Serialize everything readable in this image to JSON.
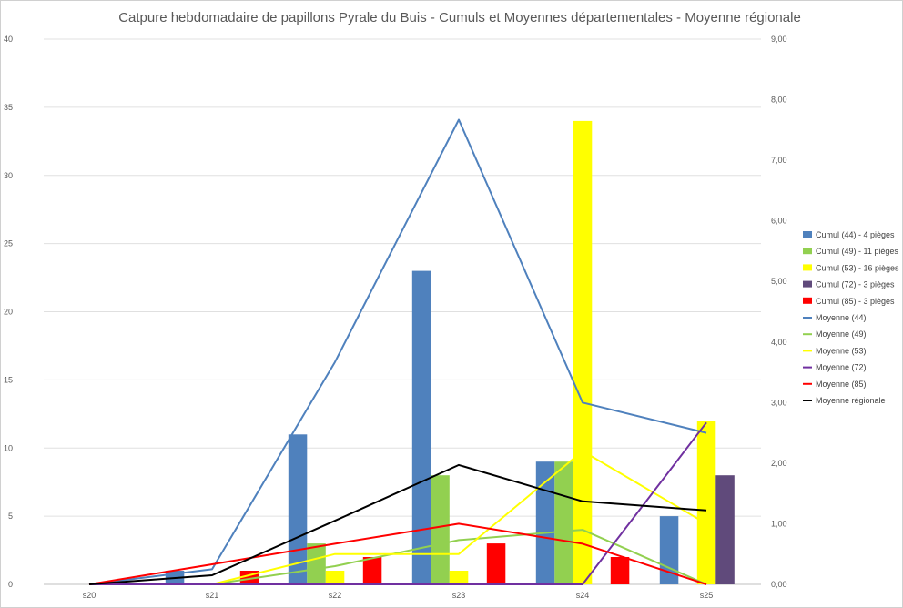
{
  "chart_data": {
    "type": "bar",
    "title": "Catpure hebdomadaire de papillons Pyrale du Buis - Cumuls et Moyennes départementales - Moyenne régionale",
    "categories": [
      "s20",
      "s21",
      "s22",
      "s23",
      "s24",
      "s25"
    ],
    "y_left": {
      "ylim": [
        0,
        40
      ],
      "ticks": [
        "0",
        "5",
        "10",
        "15",
        "20",
        "25",
        "30",
        "35",
        "40"
      ]
    },
    "y_right": {
      "ylim": [
        0,
        9
      ],
      "ticks": [
        "0,00",
        "1,00",
        "2,00",
        "3,00",
        "4,00",
        "5,00",
        "6,00",
        "7,00",
        "8,00",
        "9,00"
      ]
    },
    "grid": true,
    "legend_position": "right",
    "bar_series": [
      {
        "name": "Cumul (44) - 4 pièges",
        "color": "#4f81bd",
        "values": [
          0,
          1,
          11,
          23,
          9,
          5
        ]
      },
      {
        "name": "Cumul (49) - 11 pièges",
        "color": "#92d050",
        "values": [
          0,
          0,
          3,
          8,
          9,
          0
        ]
      },
      {
        "name": "Cumul (53) - 16 pièges",
        "color": "#ffff00",
        "values": [
          0,
          0,
          1,
          1,
          34,
          12
        ]
      },
      {
        "name": "Cumul (72) - 3 pièges",
        "color": "#604a7b",
        "values": [
          0,
          0,
          0,
          0,
          0,
          8
        ]
      },
      {
        "name": "Cumul (85) - 3 pièges",
        "color": "#ff0000",
        "values": [
          0,
          1,
          2,
          3,
          2,
          0
        ]
      }
    ],
    "line_series": [
      {
        "name": "Moyenne (44)",
        "color": "#4f81bd",
        "values": [
          0,
          0.25,
          3.67,
          7.67,
          3.0,
          2.5
        ]
      },
      {
        "name": "Moyenne (49)",
        "color": "#92d050",
        "values": [
          null,
          0,
          0.3,
          0.73,
          0.9,
          0
        ]
      },
      {
        "name": "Moyenne (53)",
        "color": "#ffff00",
        "values": [
          null,
          0,
          0.5,
          0.5,
          2.2,
          1.0
        ]
      },
      {
        "name": "Moyenne (72)",
        "color": "#7030a0",
        "values": [
          0,
          0,
          0,
          0,
          0,
          2.67
        ]
      },
      {
        "name": "Moyenne (85)",
        "color": "#ff0000",
        "values": [
          0,
          0.33,
          0.67,
          1.0,
          0.67,
          0
        ]
      },
      {
        "name": "Moyenne régionale",
        "color": "#000000",
        "values": [
          0,
          0.15,
          1.05,
          1.97,
          1.37,
          1.22
        ]
      }
    ]
  }
}
